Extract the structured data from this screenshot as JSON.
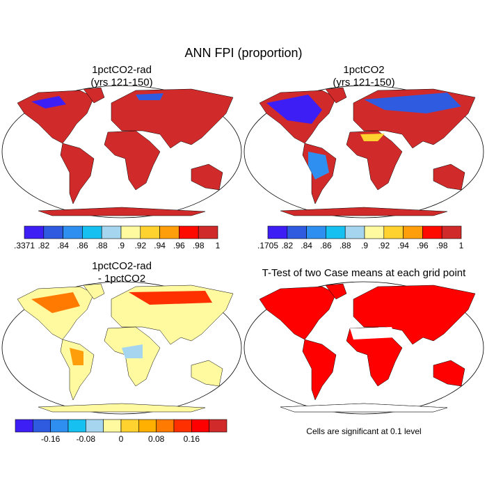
{
  "title": "ANN FPI (proportion)",
  "panels": [
    {
      "title": [
        "1pctCO2-rad",
        "(yrs 121-150)"
      ]
    },
    {
      "title": [
        "1pctCO2",
        "(yrs 121-150)"
      ]
    },
    {
      "title": [
        "1pctCO2-rad",
        "- 1pctCO2"
      ]
    },
    {
      "title": [
        "T-Test of two Case means at each grid point"
      ]
    }
  ],
  "colorbars": [
    {
      "colors": [
        "#3d1ff5",
        "#2e5be0",
        "#2f8ff0",
        "#16c0f0",
        "#a6d6ef",
        "#fffa9f",
        "#ffd230",
        "#ff9e0b",
        "#ff0a00",
        "#d12a2a"
      ],
      "labels": [
        ".3371",
        ".82",
        ".84",
        ".86",
        ".88",
        ".9",
        ".92",
        ".94",
        ".96",
        ".98",
        "1"
      ]
    },
    {
      "colors": [
        "#3d1ff5",
        "#2e5be0",
        "#2f8ff0",
        "#16c0f0",
        "#a6d6ef",
        "#fffa9f",
        "#ffd230",
        "#ff9e0b",
        "#ff0a00",
        "#d12a2a"
      ],
      "labels": [
        ".1705",
        ".82",
        ".84",
        ".86",
        ".88",
        ".9",
        ".92",
        ".94",
        ".96",
        ".98",
        "1"
      ]
    },
    {
      "colors": [
        "#3d1ff5",
        "#2e5be0",
        "#2f8ff0",
        "#16c0f0",
        "#a6d6ef",
        "#fffa9f",
        "#ffd230",
        "#ffb000",
        "#ff7a00",
        "#ff3000",
        "#ff0000",
        "#d12a2a"
      ],
      "labels": [
        null,
        null,
        "-0.16",
        null,
        "-0.08",
        null,
        "0",
        null,
        "0.08",
        null,
        "0.16",
        null,
        null
      ]
    }
  ],
  "note": "Cells are significant at 0.1 level"
}
